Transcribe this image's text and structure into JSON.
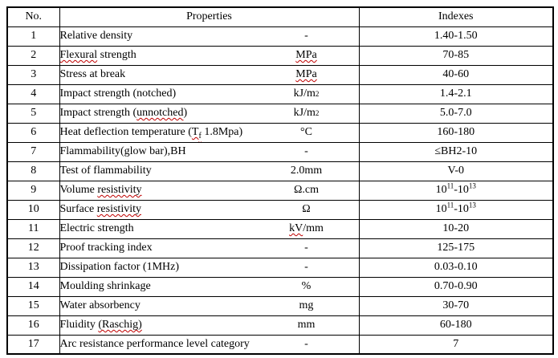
{
  "table": {
    "headers": [
      "No.",
      "Properties",
      "Indexes"
    ],
    "colors": {
      "border": "#000000",
      "spell_underline": "#c00000",
      "background": "#ffffff",
      "text": "#000000"
    },
    "rows": [
      {
        "no": "1",
        "property": [
          {
            "text": "Relative density"
          }
        ],
        "unit": [
          {
            "text": "-"
          }
        ],
        "index": [
          {
            "text": "1.40-1.50"
          }
        ]
      },
      {
        "no": "2",
        "property": [
          {
            "text": "Flexural",
            "spell": true
          },
          {
            "text": " strength"
          }
        ],
        "unit": [
          {
            "text": "MPa",
            "spell": true
          }
        ],
        "index": [
          {
            "text": "70-85"
          }
        ]
      },
      {
        "no": "3",
        "property": [
          {
            "text": "Stress at break"
          }
        ],
        "unit": [
          {
            "text": "MPa",
            "spell": true
          }
        ],
        "index": [
          {
            "text": "40-60"
          }
        ]
      },
      {
        "no": "4",
        "property": [
          {
            "text": "Impact strength (notched)"
          }
        ],
        "unit": [
          {
            "text": "kJ/m"
          },
          {
            "text": "2",
            "sup": true
          }
        ],
        "index": [
          {
            "text": "1.4-2.1"
          }
        ]
      },
      {
        "no": "5",
        "property": [
          {
            "text": "Impact strength ("
          },
          {
            "text": "unnotched",
            "spell": true
          },
          {
            "text": ")"
          }
        ],
        "unit": [
          {
            "text": "kJ/m"
          },
          {
            "text": "2",
            "sup": true
          }
        ],
        "index": [
          {
            "text": "5.0-7.0"
          }
        ]
      },
      {
        "no": "6",
        "property": [
          {
            "text": "Heat deflection temperature ("
          },
          {
            "text": "T",
            "spell": true
          },
          {
            "text": "f",
            "sub": true,
            "spell": true
          },
          {
            "text": " 1.8Mpa)"
          }
        ],
        "unit": [
          {
            "text": "°C"
          }
        ],
        "index": [
          {
            "text": "160-180"
          }
        ]
      },
      {
        "no": "7",
        "property": [
          {
            "text": "Flammability(glow bar),BH"
          }
        ],
        "unit": [
          {
            "text": "-"
          }
        ],
        "index": [
          {
            "text": "≤BH2-10"
          }
        ]
      },
      {
        "no": "8",
        "property": [
          {
            "text": "Test of flammability"
          }
        ],
        "unit": [
          {
            "text": "2.0mm"
          }
        ],
        "index": [
          {
            "text": "V-0"
          }
        ]
      },
      {
        "no": "9",
        "property": [
          {
            "text": "Volume "
          },
          {
            "text": "resistivity",
            "spell": true
          }
        ],
        "unit": [
          {
            "text": "Ω.cm"
          }
        ],
        "index": [
          {
            "text": "10"
          },
          {
            "text": "11",
            "sup": true
          },
          {
            "text": "-10"
          },
          {
            "text": "13",
            "sup": true
          }
        ]
      },
      {
        "no": "10",
        "property": [
          {
            "text": "Surface "
          },
          {
            "text": "resistivity",
            "spell": true
          }
        ],
        "unit": [
          {
            "text": "Ω"
          }
        ],
        "index": [
          {
            "text": "10"
          },
          {
            "text": "11",
            "sup": true
          },
          {
            "text": "-10"
          },
          {
            "text": "13",
            "sup": true
          }
        ]
      },
      {
        "no": "11",
        "property": [
          {
            "text": "Electric strength"
          }
        ],
        "unit": [
          {
            "text": "kV",
            "spell": true
          },
          {
            "text": "/mm"
          }
        ],
        "index": [
          {
            "text": "10-20"
          }
        ]
      },
      {
        "no": "12",
        "property": [
          {
            "text": "Proof tracking index"
          }
        ],
        "unit": [
          {
            "text": "-"
          }
        ],
        "index": [
          {
            "text": "125-175"
          }
        ]
      },
      {
        "no": "13",
        "property": [
          {
            "text": "Dissipation factor (1MHz)"
          }
        ],
        "unit": [
          {
            "text": "-"
          }
        ],
        "index": [
          {
            "text": "0.03-0.10"
          }
        ]
      },
      {
        "no": "14",
        "property": [
          {
            "text": "Moulding shrinkage"
          }
        ],
        "unit": [
          {
            "text": "%"
          }
        ],
        "index": [
          {
            "text": "0.70-0.90"
          }
        ]
      },
      {
        "no": "15",
        "property": [
          {
            "text": "Water absorbency"
          }
        ],
        "unit": [
          {
            "text": "mg"
          }
        ],
        "index": [
          {
            "text": "30-70"
          }
        ]
      },
      {
        "no": "16",
        "property": [
          {
            "text": "Fluidity "
          },
          {
            "text": "(Raschig)",
            "spell": true
          }
        ],
        "unit": [
          {
            "text": "mm"
          }
        ],
        "index": [
          {
            "text": "60-180"
          }
        ]
      },
      {
        "no": "17",
        "property": [
          {
            "text": "Arc resistance performance level category"
          }
        ],
        "unit": [
          {
            "text": "-"
          }
        ],
        "index": [
          {
            "text": "7"
          }
        ]
      }
    ]
  }
}
